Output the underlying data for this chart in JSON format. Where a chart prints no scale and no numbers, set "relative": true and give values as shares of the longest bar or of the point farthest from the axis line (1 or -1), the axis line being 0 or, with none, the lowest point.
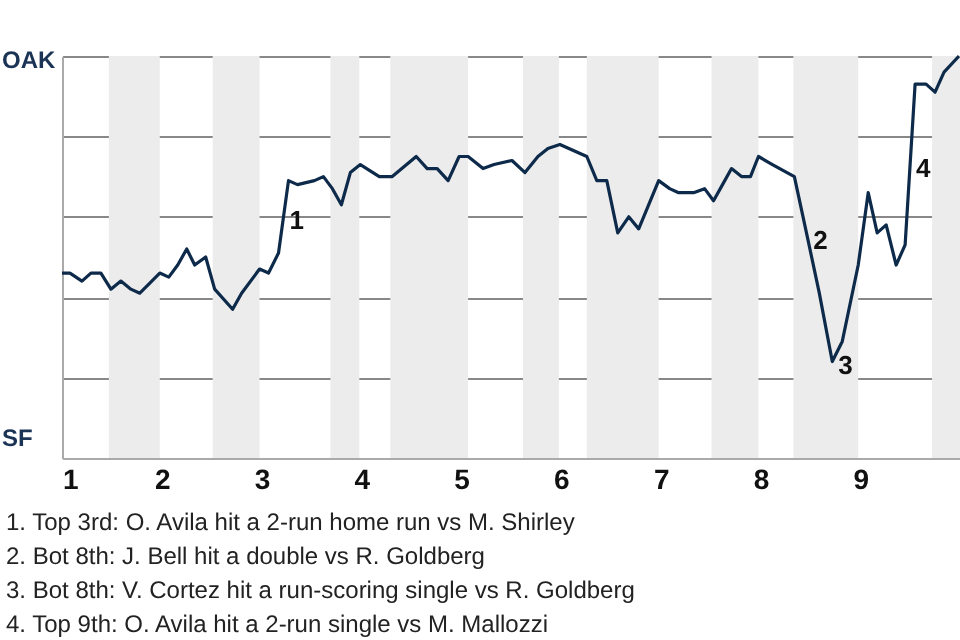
{
  "chart_data": {
    "type": "line",
    "color": "#0d2a4a",
    "grid": "y",
    "line_style": "solid",
    "marker": "none",
    "relative": true,
    "xlim": [
      1,
      10
    ],
    "xticks": [
      1,
      2,
      3,
      4,
      5,
      6,
      7,
      8,
      9
    ],
    "x": [
      1.0,
      1.08,
      1.2,
      1.29,
      1.39,
      1.49,
      1.59,
      1.69,
      1.78,
      1.98,
      2.07,
      2.16,
      2.25,
      2.33,
      2.44,
      2.53,
      2.71,
      2.8,
      2.98,
      3.07,
      3.17,
      3.27,
      3.36,
      3.53,
      3.62,
      3.71,
      3.8,
      3.89,
      3.99,
      4.18,
      4.31,
      4.55,
      4.66,
      4.76,
      4.87,
      4.98,
      5.07,
      5.22,
      5.33,
      5.51,
      5.64,
      5.77,
      5.87,
      5.99,
      6.26,
      6.36,
      6.46,
      6.57,
      6.68,
      6.78,
      6.98,
      7.09,
      7.18,
      7.33,
      7.44,
      7.53,
      7.62,
      7.71,
      7.81,
      7.9,
      7.98,
      8.12,
      8.34,
      8.47,
      8.59,
      8.72,
      8.82,
      8.98,
      9.08,
      9.17,
      9.26,
      9.36,
      9.45,
      9.55,
      9.66,
      9.75,
      9.84,
      9.99
    ],
    "values": [
      0.46,
      0.46,
      0.44,
      0.46,
      0.46,
      0.42,
      0.44,
      0.42,
      0.41,
      0.46,
      0.45,
      0.48,
      0.52,
      0.48,
      0.5,
      0.42,
      0.37,
      0.41,
      0.47,
      0.46,
      0.51,
      0.69,
      0.68,
      0.69,
      0.7,
      0.67,
      0.63,
      0.71,
      0.73,
      0.7,
      0.7,
      0.75,
      0.72,
      0.72,
      0.69,
      0.75,
      0.75,
      0.72,
      0.73,
      0.74,
      0.71,
      0.75,
      0.77,
      0.78,
      0.75,
      0.69,
      0.69,
      0.56,
      0.6,
      0.57,
      0.69,
      0.67,
      0.66,
      0.66,
      0.67,
      0.64,
      0.68,
      0.72,
      0.7,
      0.7,
      0.75,
      0.73,
      0.7,
      0.55,
      0.41,
      0.24,
      0.29,
      0.48,
      0.66,
      0.56,
      0.58,
      0.48,
      0.53,
      0.93,
      0.93,
      0.91,
      0.96,
      1
    ],
    "bands": [
      {
        "axis": "x",
        "from": 1.47,
        "to": 1.98,
        "color": "#ececec"
      },
      {
        "axis": "x",
        "from": 2.51,
        "to": 2.98,
        "color": "#ececec"
      },
      {
        "axis": "x",
        "from": 3.69,
        "to": 3.98,
        "color": "#ececec"
      },
      {
        "axis": "x",
        "from": 4.29,
        "to": 5.07,
        "color": "#ececec"
      },
      {
        "axis": "x",
        "from": 5.62,
        "to": 5.98,
        "color": "#ececec"
      },
      {
        "axis": "x",
        "from": 6.26,
        "to": 6.98,
        "color": "#ececec"
      },
      {
        "axis": "x",
        "from": 7.51,
        "to": 7.98,
        "color": "#ececec"
      },
      {
        "axis": "x",
        "from": 8.33,
        "to": 8.98,
        "color": "#ececec"
      },
      {
        "axis": "x",
        "from": 9.72,
        "to": 10,
        "color": "#ececec"
      }
    ],
    "annotations": [
      "OAK",
      "SF",
      {
        "text": "1",
        "x": 3.22,
        "y": 0.6
      },
      {
        "text": "2",
        "x": 8.47,
        "y": 0.55
      },
      {
        "text": "3",
        "x": 8.72,
        "y": 0.24
      },
      {
        "text": "4",
        "x": 9.5,
        "y": 0.73
      },
      "1. Top 3rd: O. Avila hit a 2-run home run vs M. Shirley",
      "2. Bot 8th: J. Bell hit a double vs R. Goldberg",
      "3. Bot 8th: V. Cortez hit a run-scoring single vs R. Goldberg",
      "4. Top 9th: O. Avila hit a 2-run single vs M. Mallozzi"
    ]
  }
}
